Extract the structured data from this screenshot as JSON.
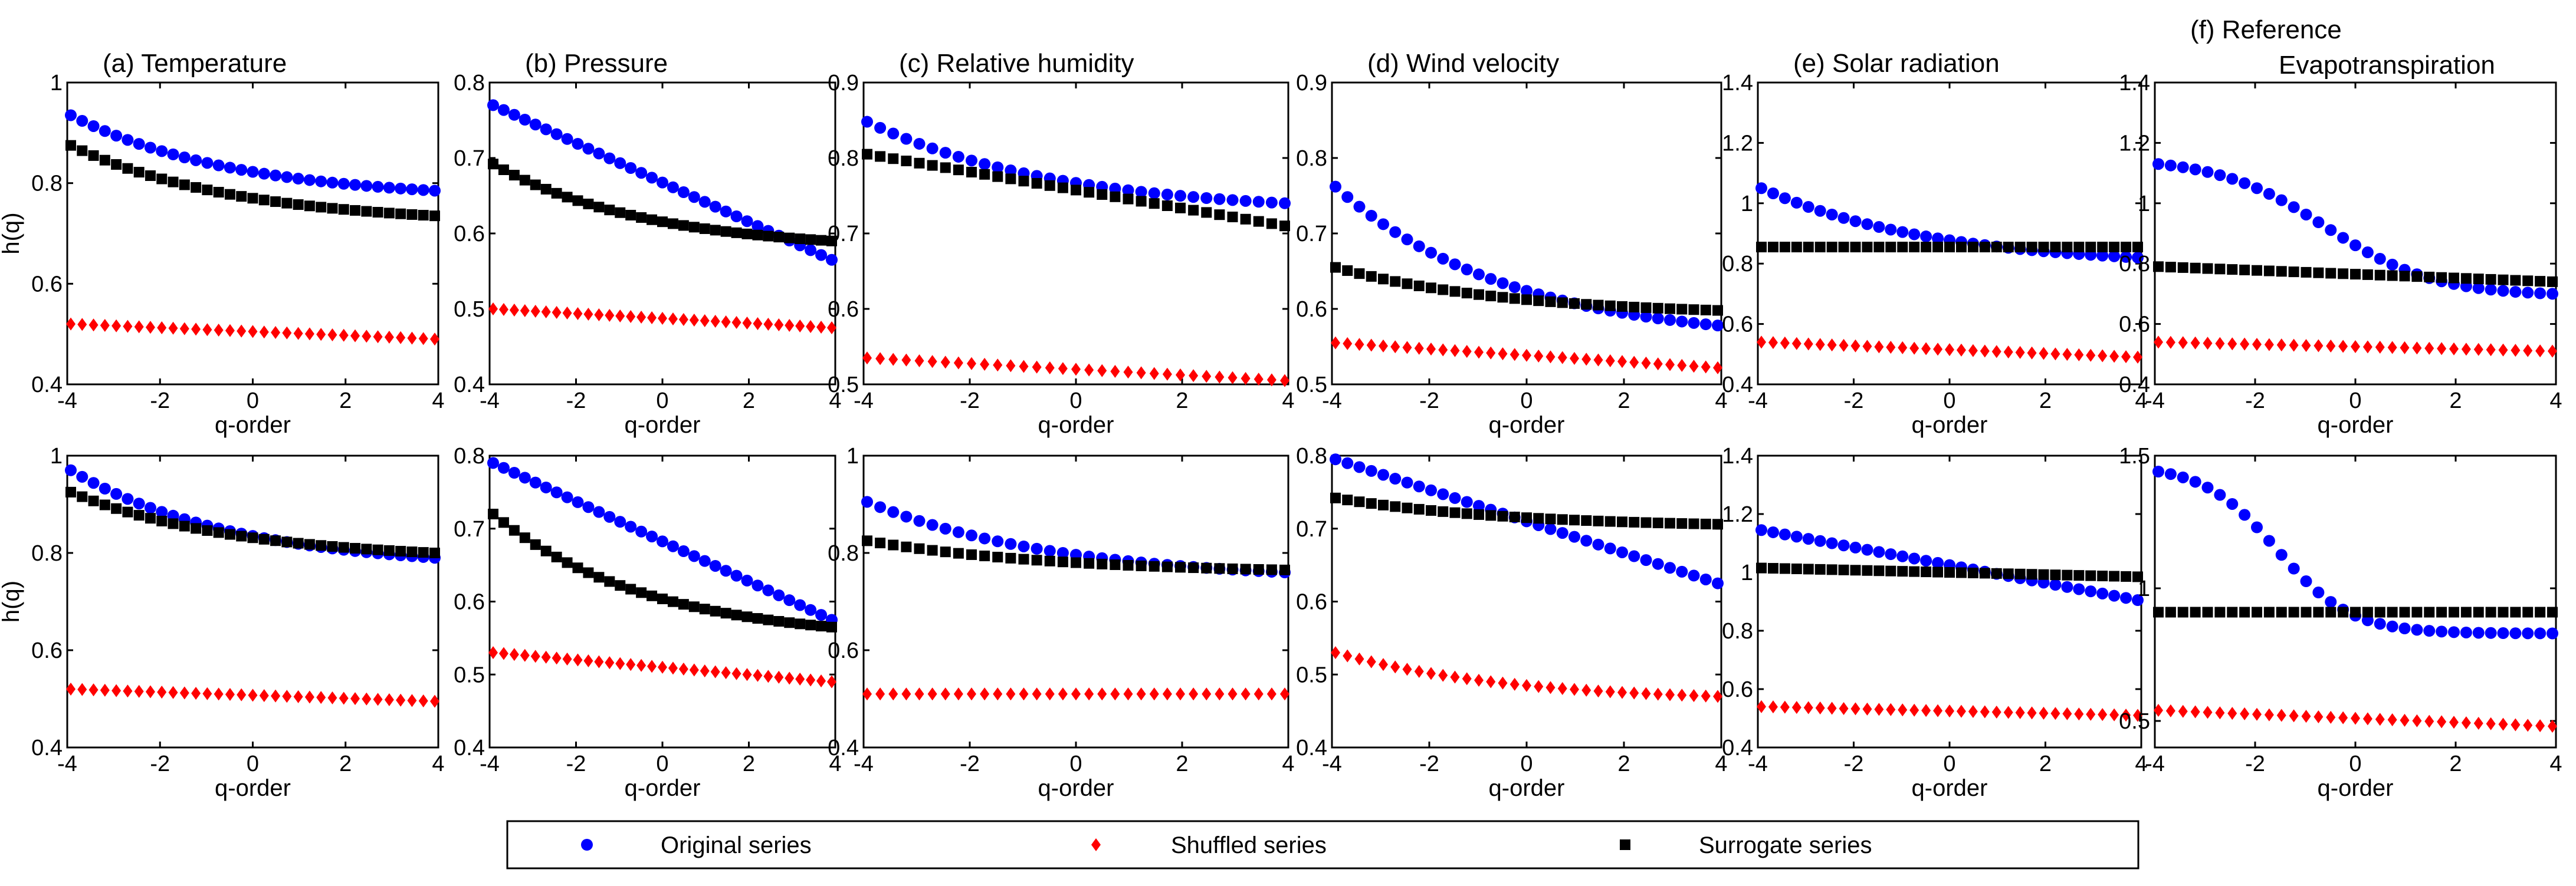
{
  "figure": {
    "type": "scatter",
    "rows": 2,
    "cols": 6
  },
  "colors": {
    "original": "#0000ff",
    "shuffled": "#ff0000",
    "surrogate": "#000000"
  },
  "legend": {
    "position": "bottom-center",
    "entries": [
      {
        "key": "original",
        "label": "Original series",
        "marker": "circle"
      },
      {
        "key": "shuffled",
        "label": "Shuffled series",
        "marker": "diamond"
      },
      {
        "key": "surrogate",
        "label": "Surrogate series",
        "marker": "square"
      }
    ]
  },
  "chart_data": [
    {
      "type": "scatter",
      "row": 0,
      "col": 0,
      "title_lines": [
        "(a) Temperature"
      ],
      "title_align": "left",
      "xlabel": "q-order",
      "ylabel": "h(q)",
      "xlim": [
        -4,
        4
      ],
      "ylim": [
        0.4,
        1.0
      ],
      "xticks": [
        -4,
        -2,
        0,
        2,
        4
      ],
      "yticks": [
        0.4,
        0.6,
        0.8,
        1.0
      ],
      "ytick_labels": [
        "0.4",
        "0.6",
        "0.8",
        "1"
      ],
      "q": {
        "start": -4,
        "end": 4,
        "points": 33
      },
      "series": [
        {
          "key": "original",
          "name": "Original series",
          "curve": "exp",
          "start": 0.935,
          "end": 0.785
        },
        {
          "key": "surrogate",
          "name": "Surrogate series",
          "curve": "exp",
          "start": 0.875,
          "end": 0.735
        },
        {
          "key": "shuffled",
          "name": "Shuffled series",
          "curve": "linear",
          "start": 0.52,
          "end": 0.49
        }
      ]
    },
    {
      "type": "scatter",
      "row": 0,
      "col": 1,
      "title_lines": [
        "(b) Pressure"
      ],
      "title_align": "left",
      "xlabel": "q-order",
      "ylabel": "",
      "xlim": [
        -4,
        4
      ],
      "ylim": [
        0.4,
        0.8
      ],
      "xticks": [
        -4,
        -2,
        0,
        2,
        4
      ],
      "yticks": [
        0.4,
        0.5,
        0.6,
        0.7,
        0.8
      ],
      "ytick_labels": [
        "0.4",
        "0.5",
        "0.6",
        "0.7",
        "0.8"
      ],
      "q": {
        "start": -4,
        "end": 4,
        "points": 33
      },
      "series": [
        {
          "key": "original",
          "name": "Original series",
          "curve": "linear",
          "start": 0.77,
          "end": 0.565
        },
        {
          "key": "surrogate",
          "name": "Surrogate series",
          "curve": "exp",
          "start": 0.692,
          "end": 0.59
        },
        {
          "key": "shuffled",
          "name": "Shuffled series",
          "curve": "linear",
          "start": 0.5,
          "end": 0.475
        }
      ]
    },
    {
      "type": "scatter",
      "row": 0,
      "col": 2,
      "title_lines": [
        "(c) Relative humidity"
      ],
      "title_align": "left",
      "xlabel": "q-order",
      "ylabel": "",
      "xlim": [
        -4,
        4
      ],
      "ylim": [
        0.5,
        0.9
      ],
      "xticks": [
        -4,
        -2,
        0,
        2,
        4
      ],
      "yticks": [
        0.5,
        0.6,
        0.7,
        0.8,
        0.9
      ],
      "ytick_labels": [
        "0.5",
        "0.6",
        "0.7",
        "0.8",
        "0.9"
      ],
      "q": {
        "start": -4,
        "end": 4,
        "points": 33
      },
      "series": [
        {
          "key": "original",
          "name": "Original series",
          "curve": "exp",
          "start": 0.848,
          "end": 0.74
        },
        {
          "key": "surrogate",
          "name": "Surrogate series",
          "curve": "linear",
          "start": 0.805,
          "end": 0.71
        },
        {
          "key": "shuffled",
          "name": "Shuffled series",
          "curve": "linear",
          "start": 0.535,
          "end": 0.505
        }
      ]
    },
    {
      "type": "scatter",
      "row": 0,
      "col": 3,
      "title_lines": [
        "(d) Wind velocity"
      ],
      "title_align": "left",
      "xlabel": "q-order",
      "ylabel": "",
      "xlim": [
        -4,
        4
      ],
      "ylim": [
        0.5,
        0.9
      ],
      "xticks": [
        -4,
        -2,
        0,
        2,
        4
      ],
      "yticks": [
        0.5,
        0.6,
        0.7,
        0.8,
        0.9
      ],
      "ytick_labels": [
        "0.5",
        "0.6",
        "0.7",
        "0.8",
        "0.9"
      ],
      "q": {
        "start": -4,
        "end": 4,
        "points": 33
      },
      "series": [
        {
          "key": "original",
          "name": "Original series",
          "curve": "exp",
          "start": 0.762,
          "end": 0.578
        },
        {
          "key": "surrogate",
          "name": "Surrogate series",
          "curve": "exp",
          "start": 0.655,
          "end": 0.598
        },
        {
          "key": "shuffled",
          "name": "Shuffled series",
          "curve": "linear",
          "start": 0.555,
          "end": 0.522
        }
      ]
    },
    {
      "type": "scatter",
      "row": 0,
      "col": 4,
      "title_lines": [
        "(e) Solar radiation"
      ],
      "title_align": "left",
      "xlabel": "q-order",
      "ylabel": "",
      "xlim": [
        -4,
        4
      ],
      "ylim": [
        0.4,
        1.4
      ],
      "xticks": [
        -4,
        -2,
        0,
        2,
        4
      ],
      "yticks": [
        0.4,
        0.6,
        0.8,
        1.0,
        1.2,
        1.4
      ],
      "ytick_labels": [
        "0.4",
        "0.6",
        "0.8",
        "1",
        "1.2",
        "1.4"
      ],
      "q": {
        "start": -4,
        "end": 4,
        "points": 33
      },
      "series": [
        {
          "key": "original",
          "name": "Original series",
          "curve": "exp",
          "start": 1.05,
          "end": 0.82
        },
        {
          "key": "surrogate",
          "name": "Surrogate series",
          "curve": "linear",
          "start": 0.855,
          "end": 0.855
        },
        {
          "key": "shuffled",
          "name": "Shuffled series",
          "curve": "linear",
          "start": 0.54,
          "end": 0.49
        }
      ]
    },
    {
      "type": "scatter",
      "row": 0,
      "col": 5,
      "title_lines": [
        "(f)  Reference",
        "Evapotranspiration"
      ],
      "title_align": "left",
      "xlabel": "q-order",
      "ylabel": "",
      "xlim": [
        -4,
        4
      ],
      "ylim": [
        0.4,
        1.4
      ],
      "xticks": [
        -4,
        -2,
        0,
        2,
        4
      ],
      "yticks": [
        0.4,
        0.6,
        0.8,
        1.0,
        1.2,
        1.4
      ],
      "ytick_labels": [
        "0.4",
        "0.6",
        "0.8",
        "1",
        "1.2",
        "1.4"
      ],
      "q": {
        "start": -4,
        "end": 4,
        "points": 33
      },
      "series": [
        {
          "key": "original",
          "name": "Original series",
          "curve": "sigmoid",
          "start": 1.13,
          "end": 0.7,
          "center": -0.6,
          "width": 1.1
        },
        {
          "key": "surrogate",
          "name": "Surrogate series",
          "curve": "linear",
          "start": 0.79,
          "end": 0.74
        },
        {
          "key": "shuffled",
          "name": "Shuffled series",
          "curve": "linear",
          "start": 0.54,
          "end": 0.51
        }
      ]
    },
    {
      "type": "scatter",
      "row": 1,
      "col": 0,
      "title_lines": [],
      "xlabel": "q-order",
      "ylabel": "h(q)",
      "xlim": [
        -4,
        4
      ],
      "ylim": [
        0.4,
        1.0
      ],
      "xticks": [
        -4,
        -2,
        0,
        2,
        4
      ],
      "yticks": [
        0.4,
        0.6,
        0.8,
        1.0
      ],
      "ytick_labels": [
        "0.4",
        "0.6",
        "0.8",
        "1"
      ],
      "q": {
        "start": -4,
        "end": 4,
        "points": 33
      },
      "series": [
        {
          "key": "original",
          "name": "Original series",
          "curve": "exp",
          "start": 0.97,
          "end": 0.79
        },
        {
          "key": "surrogate",
          "name": "Surrogate series",
          "curve": "exp",
          "start": 0.925,
          "end": 0.8
        },
        {
          "key": "shuffled",
          "name": "Shuffled series",
          "curve": "linear",
          "start": 0.52,
          "end": 0.495
        }
      ]
    },
    {
      "type": "scatter",
      "row": 1,
      "col": 1,
      "title_lines": [],
      "xlabel": "q-order",
      "ylabel": "",
      "xlim": [
        -4,
        4
      ],
      "ylim": [
        0.4,
        0.8
      ],
      "xticks": [
        -4,
        -2,
        0,
        2,
        4
      ],
      "yticks": [
        0.4,
        0.5,
        0.6,
        0.7,
        0.8
      ],
      "ytick_labels": [
        "0.4",
        "0.5",
        "0.6",
        "0.7",
        "0.8"
      ],
      "q": {
        "start": -4,
        "end": 4,
        "points": 33
      },
      "series": [
        {
          "key": "original",
          "name": "Original series",
          "curve": "linear",
          "start": 0.79,
          "end": 0.575
        },
        {
          "key": "surrogate",
          "name": "Surrogate series",
          "curve": "exp",
          "start": 0.72,
          "end": 0.565
        },
        {
          "key": "shuffled",
          "name": "Shuffled series",
          "curve": "linear",
          "start": 0.53,
          "end": 0.49
        }
      ]
    },
    {
      "type": "scatter",
      "row": 1,
      "col": 2,
      "title_lines": [],
      "xlabel": "q-order",
      "ylabel": "",
      "xlim": [
        -4,
        4
      ],
      "ylim": [
        0.4,
        1.0
      ],
      "xticks": [
        -4,
        -2,
        0,
        2,
        4
      ],
      "yticks": [
        0.4,
        0.6,
        0.8,
        1.0
      ],
      "ytick_labels": [
        "0.4",
        "0.6",
        "0.8",
        "1"
      ],
      "q": {
        "start": -4,
        "end": 4,
        "points": 33
      },
      "series": [
        {
          "key": "original",
          "name": "Original series",
          "curve": "exp",
          "start": 0.905,
          "end": 0.76
        },
        {
          "key": "surrogate",
          "name": "Surrogate series",
          "curve": "exp",
          "start": 0.825,
          "end": 0.765
        },
        {
          "key": "shuffled",
          "name": "Shuffled series",
          "curve": "linear",
          "start": 0.51,
          "end": 0.51
        }
      ]
    },
    {
      "type": "scatter",
      "row": 1,
      "col": 3,
      "title_lines": [],
      "xlabel": "q-order",
      "ylabel": "",
      "xlim": [
        -4,
        4
      ],
      "ylim": [
        0.4,
        0.8
      ],
      "xticks": [
        -4,
        -2,
        0,
        2,
        4
      ],
      "yticks": [
        0.4,
        0.5,
        0.6,
        0.7,
        0.8
      ],
      "ytick_labels": [
        "0.4",
        "0.5",
        "0.6",
        "0.7",
        "0.8"
      ],
      "q": {
        "start": -4,
        "end": 4,
        "points": 33
      },
      "series": [
        {
          "key": "original",
          "name": "Original series",
          "curve": "linear",
          "start": 0.795,
          "end": 0.625
        },
        {
          "key": "surrogate",
          "name": "Surrogate series",
          "curve": "exp",
          "start": 0.742,
          "end": 0.706
        },
        {
          "key": "shuffled",
          "name": "Shuffled series",
          "curve": "exp",
          "start": 0.53,
          "end": 0.47
        }
      ]
    },
    {
      "type": "scatter",
      "row": 1,
      "col": 4,
      "title_lines": [],
      "xlabel": "q-order",
      "ylabel": "",
      "xlim": [
        -4,
        4
      ],
      "ylim": [
        0.4,
        1.4
      ],
      "xticks": [
        -4,
        -2,
        0,
        2,
        4
      ],
      "yticks": [
        0.4,
        0.6,
        0.8,
        1.0,
        1.2,
        1.4
      ],
      "ytick_labels": [
        "0.4",
        "0.6",
        "0.8",
        "1",
        "1.2",
        "1.4"
      ],
      "q": {
        "start": -4,
        "end": 4,
        "points": 33
      },
      "series": [
        {
          "key": "original",
          "name": "Original series",
          "curve": "linear",
          "start": 1.145,
          "end": 0.905
        },
        {
          "key": "surrogate",
          "name": "Surrogate series",
          "curve": "linear",
          "start": 1.015,
          "end": 0.985
        },
        {
          "key": "shuffled",
          "name": "Shuffled series",
          "curve": "linear",
          "start": 0.54,
          "end": 0.51
        }
      ]
    },
    {
      "type": "scatter",
      "row": 1,
      "col": 5,
      "title_lines": [],
      "xlabel": "q-order",
      "ylabel": "",
      "xlim": [
        -4,
        4
      ],
      "ylim": [
        0.4,
        1.5
      ],
      "xticks": [
        -4,
        -2,
        0,
        2,
        4
      ],
      "yticks": [
        0.5,
        1.0,
        1.5
      ],
      "ytick_labels": [
        "0.5",
        "1",
        "1.5"
      ],
      "q": {
        "start": -4,
        "end": 4,
        "points": 33
      },
      "series": [
        {
          "key": "original",
          "name": "Original series",
          "curve": "sigmoid",
          "start": 1.44,
          "end": 0.83,
          "center": -1.6,
          "width": 0.75
        },
        {
          "key": "surrogate",
          "name": "Surrogate series",
          "curve": "linear",
          "start": 0.91,
          "end": 0.91
        },
        {
          "key": "shuffled",
          "name": "Shuffled series",
          "curve": "linear",
          "start": 0.54,
          "end": 0.48
        }
      ]
    }
  ]
}
